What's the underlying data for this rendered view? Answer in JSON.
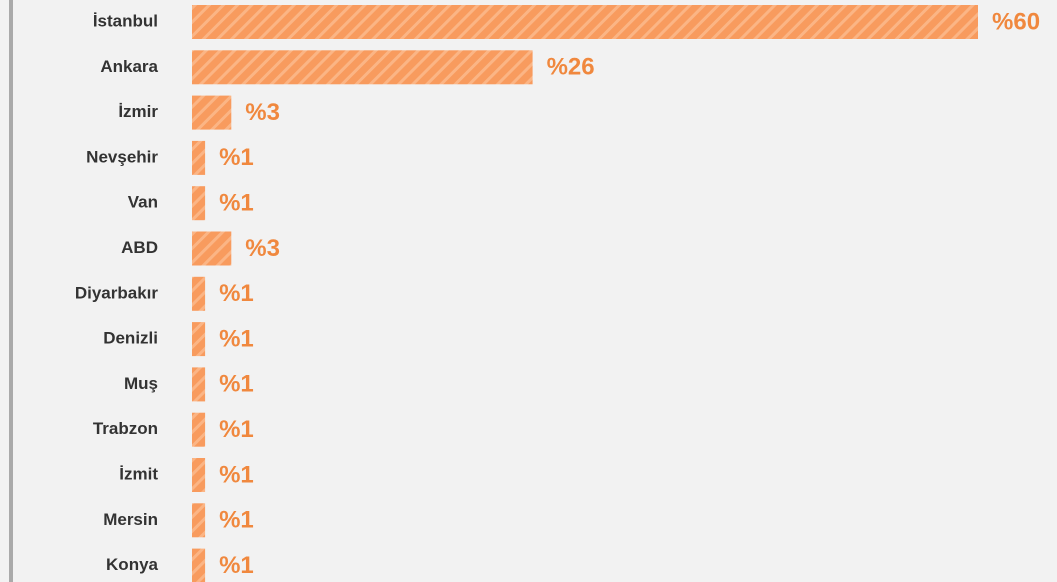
{
  "chart_data": {
    "type": "bar",
    "orientation": "horizontal",
    "color": "#f89b5e",
    "categories": [
      "İstanbul",
      "Ankara",
      "İzmir",
      "Nevşehir",
      "Van",
      "ABD",
      "Diyarbakır",
      "Denizli",
      "Muş",
      "Trabzon",
      "İzmit",
      "Mersin",
      "Konya"
    ],
    "values": [
      60,
      26,
      3,
      1,
      1,
      3,
      1,
      1,
      1,
      1,
      1,
      1,
      1
    ],
    "value_labels": [
      "%60",
      "%26",
      "%3",
      "%1",
      "%1",
      "%3",
      "%1",
      "%1",
      "%1",
      "%1",
      "%1",
      "%1",
      "%1"
    ]
  }
}
